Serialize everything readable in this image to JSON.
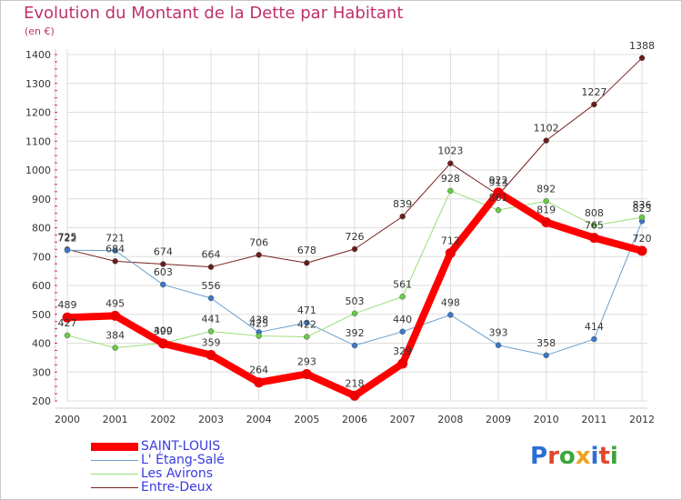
{
  "title": "Evolution du Montant de la Dette par Habitant",
  "subtitle": "(en €)",
  "logo": {
    "text": "Proxiti",
    "colors": [
      "#2a6fd6",
      "#e0482a",
      "#3aa63a",
      "#f0a020",
      "#2a6fd6",
      "#e0482a",
      "#3aa63a"
    ]
  },
  "chart_data": {
    "type": "line",
    "x": [
      2000,
      2001,
      2002,
      2003,
      2004,
      2005,
      2006,
      2007,
      2008,
      2009,
      2010,
      2011,
      2012
    ],
    "ylim": [
      200,
      1400
    ],
    "yticks": [
      200,
      300,
      400,
      500,
      600,
      700,
      800,
      900,
      1000,
      1100,
      1200,
      1300,
      1400
    ],
    "grid": true,
    "legend_placement": "bottom-left",
    "series": [
      {
        "name": "Entre-Deux",
        "color": "#7a2020",
        "thickness": 1,
        "point": "#6a1a1a",
        "values": [
          725,
          684,
          674,
          664,
          706,
          678,
          726,
          839,
          1023,
          913,
          1102,
          1227,
          1388
        ]
      },
      {
        "name": "L' Étang-Salé",
        "color": "#6a9fcc",
        "thickness": 1,
        "point": "#3a78c8",
        "values": [
          722,
          721,
          603,
          556,
          438,
          471,
          392,
          440,
          498,
          393,
          358,
          414,
          823
        ]
      },
      {
        "name": "Les Avirons",
        "color": "#99dd77",
        "thickness": 1,
        "point": "#66cc44",
        "values": [
          427,
          384,
          400,
          441,
          425,
          422,
          503,
          561,
          928,
          861,
          892,
          808,
          836
        ]
      },
      {
        "name": "SAINT-LOUIS",
        "color": "#ff0000",
        "thickness": 8,
        "point": "#ee0000",
        "values": [
          489,
          495,
          399,
          359,
          264,
          293,
          218,
          329,
          712,
          922,
          819,
          765,
          720
        ]
      }
    ],
    "legend_order": [
      "SAINT-LOUIS",
      "L' Étang-Salé",
      "Les Avirons",
      "Entre-Deux"
    ]
  }
}
